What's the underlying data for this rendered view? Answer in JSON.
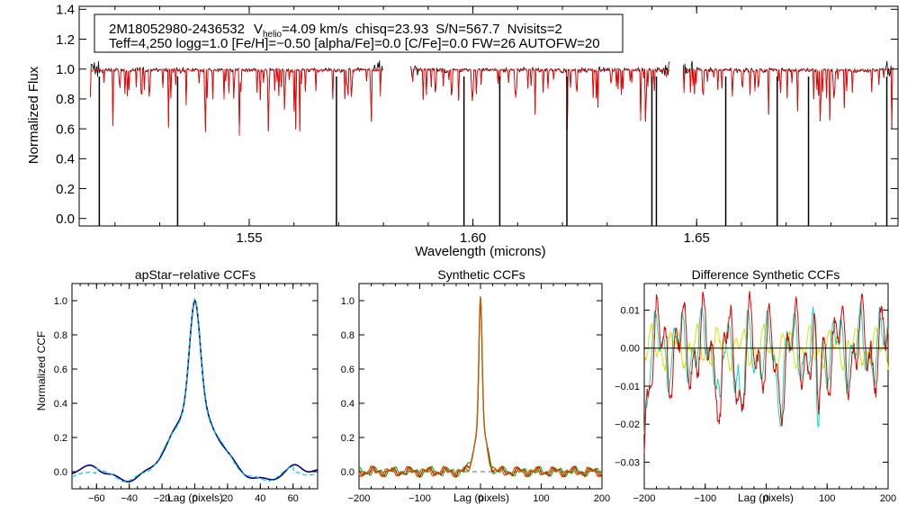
{
  "chart_data": [
    {
      "type": "line",
      "panel": "spectrum",
      "xlabel": "Wavelength (microns)",
      "ylabel": "Normalized Flux",
      "xlim": [
        1.512,
        1.695
      ],
      "ylim": [
        -0.05,
        1.42
      ],
      "xticks": [
        1.55,
        1.6,
        1.65
      ],
      "xtick_labels": [
        "1.55",
        "1.60",
        "1.65"
      ],
      "yticks": [
        0.0,
        0.2,
        0.4,
        0.6,
        0.8,
        1.0,
        1.2,
        1.4
      ],
      "ytick_labels": [
        "0.0",
        "0.2",
        "0.4",
        "0.6",
        "0.8",
        "1.0",
        "1.2",
        "1.4"
      ],
      "chips": [
        [
          1.5145,
          1.58
        ],
        [
          1.586,
          1.644
        ],
        [
          1.647,
          1.694
        ]
      ],
      "bad_pixels": [
        1.5165,
        1.534,
        1.5695,
        1.598,
        1.606,
        1.621,
        1.64,
        1.641,
        1.6565,
        1.668,
        1.675,
        1.6925
      ],
      "series": [
        {
          "name": "observed",
          "color": "#000000",
          "continuum": 1.0
        },
        {
          "name": "model",
          "color": "#ff0000",
          "continuum": 1.0
        }
      ],
      "annotation": {
        "star_id": "2M18052980-2436532",
        "v_label": "V",
        "v_sub": "helio",
        "v_value": "=4.09 km/s",
        "chisq": "chisq=23.93",
        "sn": "S/N=567.7",
        "nvisits": "Nvisits=2",
        "line2": "Teff=4,250 logg=1.0 [Fe/H]=−0.50 [alpha/Fe]=0.0 [C/Fe]=0.0 FW=26 AUTOFW=20"
      }
    },
    {
      "type": "line",
      "panel": "apstar-ccf",
      "title": "apStar−relative CCFs",
      "xlabel": "Lag (pixels)",
      "ylabel": "Normalized CCF",
      "xlim": [
        -75,
        75
      ],
      "ylim": [
        -0.1,
        1.1
      ],
      "xticks": [
        -60,
        -40,
        -20,
        0,
        20,
        40,
        60
      ],
      "xtick_labels": [
        "−60",
        "−40",
        "−20",
        "0",
        "20",
        "40",
        "60"
      ],
      "yticks": [
        0.0,
        0.2,
        0.4,
        0.6,
        0.8,
        1.0
      ],
      "ytick_labels": [
        "0.0",
        "0.2",
        "0.4",
        "0.6",
        "0.8",
        "1.0"
      ],
      "series": [
        {
          "name": "ccf-visit-1",
          "color": "#000080",
          "peak": 1.0,
          "center": 0
        },
        {
          "name": "ccf-visit-2",
          "color": "#00ced1",
          "peak": 1.0,
          "center": 0,
          "dashed": true
        }
      ]
    },
    {
      "type": "line",
      "panel": "synthetic-ccf",
      "title": "Synthetic CCFs",
      "xlabel": "Lag (pixels)",
      "xlim": [
        -200,
        200
      ],
      "ylim": [
        -0.1,
        1.1
      ],
      "xticks": [
        -200,
        -100,
        0,
        100,
        200
      ],
      "xtick_labels": [
        "−200",
        "−100",
        "0",
        "100",
        "200"
      ],
      "yticks": [
        0.0,
        0.2,
        0.4,
        0.6,
        0.8,
        1.0
      ],
      "ytick_labels": [
        "0.0",
        "0.2",
        "0.4",
        "0.6",
        "0.8",
        "1.0"
      ],
      "series": [
        {
          "name": "synthetic-ccf-green",
          "color": "#00c000",
          "peak": 1.0
        },
        {
          "name": "synthetic-ccf-red",
          "color": "#e00000",
          "peak": 1.0
        },
        {
          "name": "synthetic-ccf-orange",
          "color": "#c06000",
          "peak": 1.0
        }
      ]
    },
    {
      "type": "line",
      "panel": "difference-ccf",
      "title": "Difference Synthetic CCFs",
      "xlabel": "Lag (pixels)",
      "xlim": [
        -200,
        200
      ],
      "ylim": [
        -0.037,
        0.017
      ],
      "xticks": [
        -200,
        -100,
        0,
        100,
        200
      ],
      "xtick_labels": [
        "−200",
        "−100",
        "0",
        "100",
        "200"
      ],
      "yticks": [
        0.01,
        0.0,
        -0.01,
        -0.02,
        -0.03
      ],
      "ytick_labels": [
        "0.01",
        "0.00",
        "−0.01",
        "−0.02",
        "−0.03"
      ],
      "series": [
        {
          "name": "difference-ccf-red",
          "color": "#e00000"
        },
        {
          "name": "difference-ccf-cyan",
          "color": "#00e0c0"
        },
        {
          "name": "difference-ccf-yellow",
          "color": "#e0e000"
        }
      ]
    }
  ]
}
